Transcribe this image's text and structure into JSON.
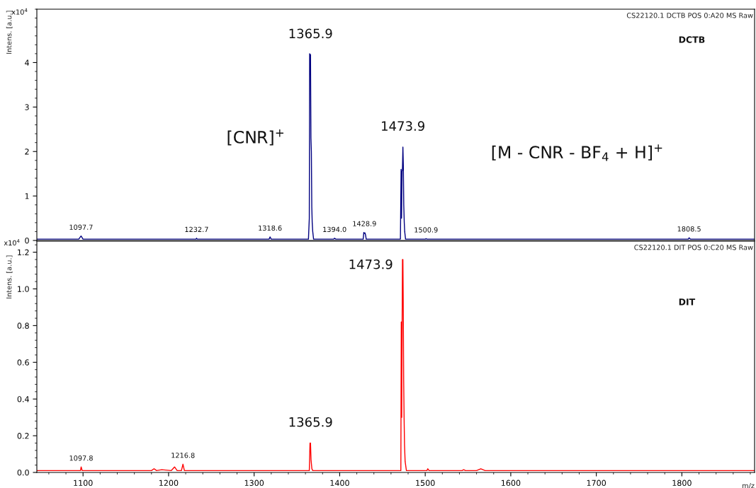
{
  "chart_data": [
    {
      "type": "line",
      "title": "CS22120.1 DCTB POS 0:A20 MS Raw",
      "ylabel": "Intens. [a.u.]",
      "x": [
        1046,
        1095,
        1097.7,
        1100,
        1232,
        1232.7,
        1233.5,
        1317.5,
        1318.6,
        1320,
        1363.5,
        1364.5,
        1364.9,
        1365.5,
        1365.9,
        1366.4,
        1366.9,
        1367.4,
        1367.9,
        1368.5,
        1369.5,
        1393,
        1394,
        1395.5,
        1427.5,
        1428.2,
        1428.9,
        1429.6,
        1430.3,
        1431,
        1471,
        1471.8,
        1472.3,
        1472.9,
        1473.4,
        1473.9,
        1474.4,
        1474.9,
        1475.5,
        1476,
        1477,
        1500,
        1500.9,
        1502,
        1807.5,
        1808.5,
        1810,
        1885
      ],
      "series": [
        {
          "color": "#000080",
          "values": [
            0.03,
            0.03,
            0.1,
            0.03,
            0.03,
            0.05,
            0.03,
            0.03,
            0.08,
            0.03,
            0.03,
            0.5,
            4.2,
            4.15,
            4.18,
            2.3,
            2.0,
            0.75,
            0.4,
            0.2,
            0.03,
            0.03,
            0.05,
            0.03,
            0.03,
            0.18,
            0.16,
            0.17,
            0.12,
            0.03,
            0.03,
            1.6,
            0.5,
            1.55,
            1.6,
            2.1,
            1.7,
            0.8,
            0.4,
            0.2,
            0.03,
            0.03,
            0.04,
            0.03,
            0.03,
            0.06,
            0.03,
            0.03
          ]
        }
      ],
      "xlim": [
        1046,
        1885
      ],
      "ylim": [
        0,
        5.2
      ],
      "yticks": [
        0,
        1,
        2,
        3,
        4
      ],
      "tick_labels": "y",
      "annotations": [
        {
          "text": "1365.9",
          "x": 1365.9,
          "y": 4.18
        },
        {
          "text": "1473.9",
          "x": 1473.9,
          "y": 2.1
        },
        "[CNR]$^{+}$",
        "[M - CNR - BF$_{4}$ + H]$^{+}$",
        "DCTB",
        "x10$^{4}$",
        {
          "text": "1097.7",
          "x": 1097.7,
          "y": 0.1
        },
        {
          "text": "1232.7",
          "x": 1232.7,
          "y": 0.05
        },
        {
          "text": "1318.6",
          "x": 1318.6,
          "y": 0.08
        },
        {
          "text": "1394.0",
          "x": 1394.0,
          "y": 0.05
        },
        {
          "text": "1428.9",
          "x": 1428.9,
          "y": 0.18
        },
        {
          "text": "1500.9",
          "x": 1500.9,
          "y": 0.04
        },
        {
          "text": "1808.5",
          "x": 1808.5,
          "y": 0.06
        }
      ]
    },
    {
      "type": "line",
      "title": "CS22120.1 DIT POS 0:C20 MS Raw",
      "ylabel": "Intens. [a.u.]",
      "xlabel": "m/z",
      "x": [
        1046,
        1097,
        1097.8,
        1099,
        1180,
        1183,
        1186,
        1192,
        1203,
        1207,
        1210,
        1215,
        1216.8,
        1218.5,
        1230,
        1364.5,
        1365.3,
        1365.9,
        1366.5,
        1367.5,
        1368.5,
        1471.5,
        1472,
        1472.5,
        1473,
        1473.4,
        1473.9,
        1474.3,
        1474.8,
        1475.3,
        1475.8,
        1476.5,
        1478,
        1502,
        1503,
        1504.5,
        1543,
        1545,
        1547,
        1560,
        1565,
        1570,
        1885
      ],
      "series": [
        {
          "color": "#ff0000",
          "values": [
            0.01,
            0.01,
            0.03,
            0.01,
            0.01,
            0.02,
            0.01,
            0.015,
            0.01,
            0.03,
            0.01,
            0.01,
            0.045,
            0.01,
            0.01,
            0.01,
            0.16,
            0.16,
            0.07,
            0.02,
            0.01,
            0.01,
            0.82,
            0.3,
            0.82,
            1.16,
            1.16,
            0.93,
            0.5,
            0.3,
            0.15,
            0.06,
            0.01,
            0.01,
            0.02,
            0.01,
            0.01,
            0.015,
            0.01,
            0.01,
            0.02,
            0.01,
            0.01
          ]
        }
      ],
      "xlim": [
        1046,
        1885
      ],
      "xticks": [
        1100,
        1200,
        1300,
        1400,
        1500,
        1600,
        1700,
        1800
      ],
      "ylim": [
        0,
        1.26
      ],
      "yticks": [
        {
          "value": 0,
          "label": "0.0"
        },
        0.2,
        0.4,
        0.6,
        0.8,
        {
          "value": 1,
          "label": "1.0"
        },
        1.2
      ],
      "annotations": [
        {
          "text": "1473.9",
          "x": 1473.9,
          "y": 1.16
        },
        {
          "text": "1365.9",
          "x": 1365.9,
          "y": 0.16
        },
        "DIT",
        "x10$^{4}$",
        {
          "text": "1097.8",
          "x": 1097.8,
          "y": 0.03
        },
        {
          "text": "1216.8",
          "x": 1216.8,
          "y": 0.045
        }
      ]
    }
  ]
}
